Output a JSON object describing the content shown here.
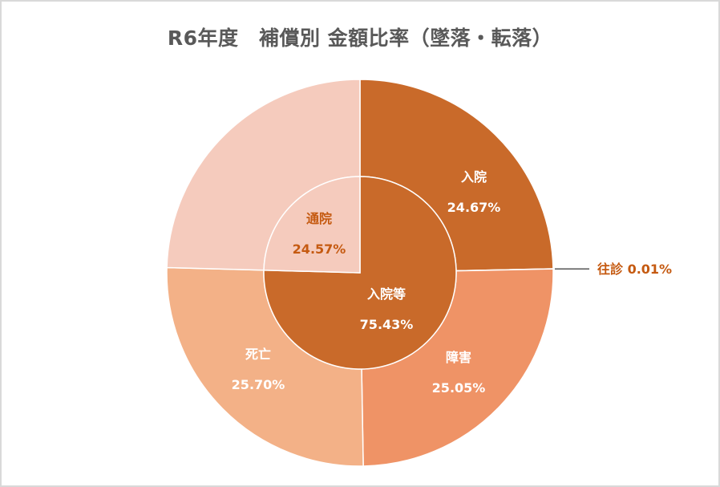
{
  "title": "R6年度　補償別 金額比率（墜落・転落）",
  "colors": {
    "dark": "#c96a2a",
    "light_pink": "#f5cbbd",
    "salmon": "#ef9366",
    "peach": "#f3b187",
    "title": "#595959",
    "border": "#d9d9d9"
  },
  "chart_data": {
    "type": "pie",
    "subtype": "doughnut-sunburst",
    "title": "R6年度　補償別 金額比率（墜落・転落）",
    "start_angle_deg": 0,
    "direction": "clockwise",
    "inner_ring": [
      {
        "label": "入院等",
        "value": 75.43,
        "display": "75.43%",
        "color": "#c96a2a",
        "text_color": "#ffffff"
      },
      {
        "label": "通院",
        "value": 24.57,
        "display": "24.57%",
        "color": "#f5cbbd",
        "text_color": "#c55a11"
      }
    ],
    "outer_ring": [
      {
        "label": "入院",
        "value": 24.67,
        "display": "24.67%",
        "color": "#c96a2a",
        "text_color": "#ffffff",
        "parent": "入院等"
      },
      {
        "label": "往診",
        "value": 0.01,
        "display": "0.01%",
        "color": "#c96a2a",
        "text_color": "#c55a11",
        "parent": "入院等",
        "callout": true
      },
      {
        "label": "障害",
        "value": 25.05,
        "display": "25.05%",
        "color": "#ef9366",
        "text_color": "#ffffff",
        "parent": "入院等"
      },
      {
        "label": "死亡",
        "value": 25.7,
        "display": "25.70%",
        "color": "#f3b187",
        "text_color": "#ffffff",
        "parent": "入院等"
      },
      {
        "label": "通院",
        "value": 24.57,
        "display": "24.57%",
        "color": "#f5cbbd",
        "text_color": "#c55a11",
        "parent": "通院"
      }
    ]
  }
}
